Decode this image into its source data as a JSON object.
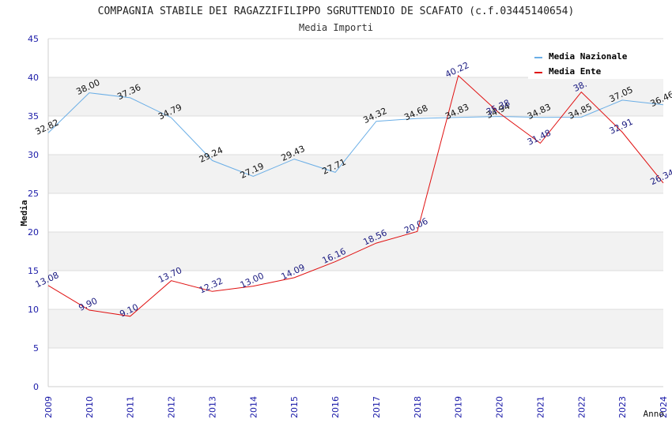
{
  "chart_data": {
    "type": "line",
    "title": "COMPAGNIA STABILE DEI RAGAZZIFILIPPO SGRUTTENDIO DE SCAFATO (c.f.03445140654)",
    "subtitle": "Media Importi",
    "xlabel": "Anno",
    "ylabel": "Media",
    "ylim": [
      0,
      45
    ],
    "yticks": [
      0,
      5,
      10,
      15,
      20,
      25,
      30,
      35,
      40,
      45
    ],
    "grid": true,
    "legend_position": "top-right",
    "x": [
      "2009",
      "2010",
      "2011",
      "2012",
      "2013",
      "2014",
      "2015",
      "2016",
      "2017",
      "2018",
      "2019",
      "2020",
      "2021",
      "2022",
      "2023",
      "2024"
    ],
    "series": [
      {
        "name": "Media Nazionale",
        "color": "#6aaee6",
        "values": [
          32.82,
          38.0,
          37.36,
          34.79,
          29.24,
          27.19,
          29.43,
          27.71,
          34.32,
          34.68,
          34.83,
          34.94,
          34.83,
          34.85,
          37.05,
          36.46
        ],
        "labels": [
          "32.82",
          "38.00",
          "37.36",
          "34.79",
          "29.24",
          "27.19",
          "29.43",
          "27.71",
          "34.32",
          "34.68",
          "34.83",
          "34.94",
          "34.83",
          "34.85",
          "37.05",
          "36.46"
        ]
      },
      {
        "name": "Media Ente",
        "color": "#e01010",
        "values": [
          13.08,
          9.9,
          9.1,
          13.7,
          12.32,
          13.0,
          14.09,
          16.16,
          18.56,
          20.06,
          40.22,
          35.38,
          31.48,
          38.1,
          32.91,
          26.34
        ],
        "labels": [
          "13.08",
          "9.90",
          "9.10",
          "13.70",
          "12.32",
          "13.00",
          "14.09",
          "16.16",
          "18.56",
          "20.06",
          "40.22",
          "35.38",
          "31.48",
          "38.",
          "32.91",
          "26.34"
        ]
      }
    ]
  }
}
